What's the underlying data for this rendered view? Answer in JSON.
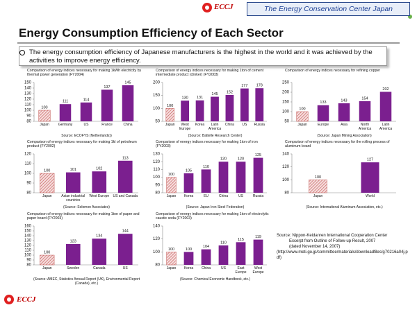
{
  "header": {
    "logo": "ECCJ",
    "organization": "The Energy Conservation Center Japan"
  },
  "title": "Energy Consumption Efficiency of Each Sector",
  "bullet": "The energy consumption efficiency of Japanese manufacturers is the highest in the world and it was achieved by the activities to improve energy efficiency.",
  "source": [
    "Source: Nippon-Keidanren International Cooperation Center",
    "Excerpt from Outline of Follow-up Result, 2007",
    "(dated November 14, 2007)",
    "(http://www.meti.go.jp/committee/materials/downloadfiles/g70216a04j.pdf)"
  ],
  "footer_logo": "ECCJ",
  "chart_data": [
    {
      "type": "bar",
      "title": "Comparison of energy indices necessary for making 1kWh electricity by thermal power generation (FY2004)",
      "categories": [
        "Japan",
        "Germany",
        "US",
        "France",
        "China"
      ],
      "values": [
        100,
        111,
        114,
        137,
        145
      ],
      "ylim": [
        80,
        150
      ],
      "yticks": [
        80,
        90,
        100,
        110,
        120,
        130,
        140,
        150
      ],
      "color": "#7b1f8f",
      "source": "Source: ECOFYS (Netherlands))"
    },
    {
      "type": "bar",
      "title": "Comparison of energy indices necessary for making 1ton of cement intermediate product (clinker) (FY2003)",
      "categories": [
        "Japan",
        "West Europe",
        "Korea",
        "Latin America",
        "China",
        "US",
        "Russia"
      ],
      "values": [
        100,
        130,
        131,
        145,
        152,
        177,
        178
      ],
      "ylim": [
        50,
        200
      ],
      "yticks": [
        50,
        100,
        150,
        200
      ],
      "color": "#7b1f8f",
      "source": "(Source: Battelle Research Center)"
    },
    {
      "type": "bar",
      "title": "Comparison of energy indices necessary for refining copper",
      "categories": [
        "Japan",
        "Europe",
        "Asia",
        "North America",
        "Latin America"
      ],
      "values": [
        100,
        133,
        143,
        154,
        202
      ],
      "ylim": [
        50,
        250
      ],
      "yticks": [
        50,
        100,
        150,
        200,
        250
      ],
      "color": "#7b1f8f",
      "source": "(Source: Japan Mining Association)"
    },
    {
      "type": "bar",
      "title": "Comparison of energy indices necessary for making 1kl of petroleum product (FY2002)",
      "categories": [
        "Japan",
        "Asian industrial countries",
        "West Europe",
        "US and Canada"
      ],
      "values": [
        100,
        101,
        102,
        113
      ],
      "ylim": [
        80,
        120
      ],
      "yticks": [
        80,
        90,
        100,
        110,
        120
      ],
      "color": "#7b1f8f",
      "source": "(Source: Solomon Associates)"
    },
    {
      "type": "bar",
      "title": "Comparison of energy indices necessary for making 1ton of iron (FY2003)",
      "categories": [
        "Japan",
        "Korea",
        "EU",
        "China",
        "US",
        "Russia"
      ],
      "values": [
        100,
        105,
        110,
        120,
        120,
        125
      ],
      "ylim": [
        80,
        130
      ],
      "yticks": [
        80,
        90,
        100,
        110,
        120,
        130
      ],
      "color": "#7b1f8f",
      "source": "(Source: Japan Iron Steel Federation)"
    },
    {
      "type": "bar",
      "title": "Comparison of energy indices necessary for the rolling process of aluminum board",
      "categories": [
        "Japan",
        "World"
      ],
      "values": [
        100,
        127
      ],
      "ylim": [
        80,
        140
      ],
      "yticks": [
        80,
        100,
        120,
        140
      ],
      "color": "#7b1f8f",
      "source": "(Source: International Aluminum Association, etc.)"
    },
    {
      "type": "bar",
      "title": "Comparison of energy indices necessary for making 1ton of paper and paper board (FY2003)",
      "categories": [
        "Japan",
        "Sweden",
        "Canada",
        "US"
      ],
      "values": [
        100,
        123,
        134,
        144
      ],
      "ylim": [
        80,
        160
      ],
      "yticks": [
        80,
        90,
        100,
        110,
        120,
        130,
        140,
        150,
        160
      ],
      "color": "#7b1f8f",
      "source": "(Source: AMEC, Statistics Annual Report (UK), Environmental Report (Canada), etc.)"
    },
    {
      "type": "bar",
      "title": "Comparison of energy indices necessary for making 1ton of electrolytic caustic soda (FY2003)",
      "categories": [
        "Japan",
        "Korea",
        "China",
        "US",
        "East Europe",
        "West Europe"
      ],
      "values": [
        100,
        100,
        104,
        110,
        115,
        119
      ],
      "ylim": [
        80,
        140
      ],
      "yticks": [
        80,
        100,
        120,
        140
      ],
      "color": "#7b1f8f",
      "source": "(Source: Chemical Economic Handbook, etc.)"
    }
  ]
}
